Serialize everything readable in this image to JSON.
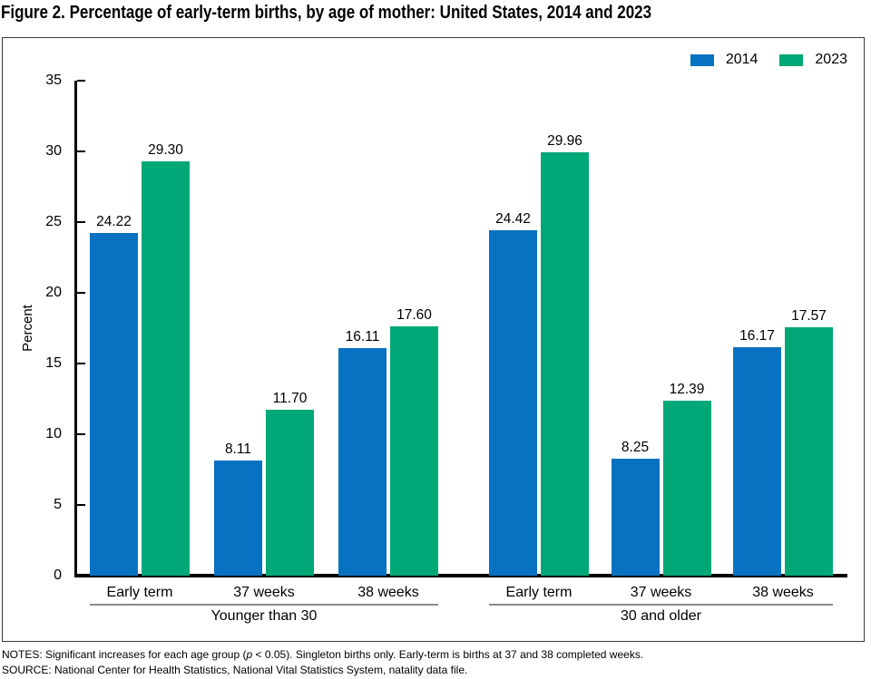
{
  "title": "Figure 2. Percentage of early-term births, by age of mother: United States, 2014 and 2023",
  "chart_data": {
    "type": "bar",
    "title": "Figure 2. Percentage of early-term births, by age of mother: United States, 2014 and 2023",
    "ylabel": "Percent",
    "ylim": [
      0,
      35
    ],
    "yticks": [
      0,
      5,
      10,
      15,
      20,
      25,
      30,
      35
    ],
    "grid": false,
    "legend_position": "top-right",
    "value_labels": true,
    "series": [
      {
        "name": "2014",
        "color": "#0772C1"
      },
      {
        "name": "2023",
        "color": "#00A878"
      }
    ],
    "groups": [
      {
        "label": "Younger than 30",
        "categories": [
          "Early term",
          "37 weeks",
          "38 weeks"
        ],
        "values": {
          "2014": [
            24.22,
            8.11,
            16.11
          ],
          "2023": [
            29.3,
            11.7,
            17.6
          ]
        }
      },
      {
        "label": "30 and older",
        "categories": [
          "Early term",
          "37 weeks",
          "38 weeks"
        ],
        "values": {
          "2014": [
            24.42,
            8.25,
            16.17
          ],
          "2023": [
            29.96,
            12.39,
            17.57
          ]
        }
      }
    ]
  },
  "notes": {
    "prefix": "NOTES: Significant increases for each age group (",
    "p": "p",
    "suffix": " < 0.05). Singleton births only. Early-term is births at 37 and 38 completed weeks."
  },
  "source": "SOURCE: National Center for Health Statistics, National Vital Statistics System, natality data file."
}
